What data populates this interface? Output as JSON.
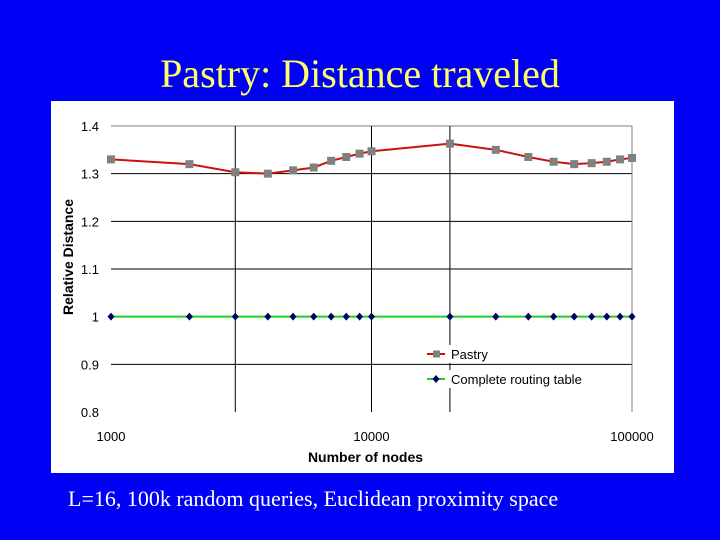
{
  "slide": {
    "title": "Pastry: Distance traveled",
    "caption": "L=16, 100k random queries, Euclidean proximity space",
    "background_color": "#0000f5",
    "title_color": "#ffff66"
  },
  "chart_data": {
    "type": "line",
    "title": "",
    "xlabel": "Number of nodes",
    "ylabel": "Relative Distance",
    "xscale": "log",
    "xlim": [
      1000,
      100000
    ],
    "ylim": [
      0.8,
      1.4
    ],
    "x_ticks": [
      "1000",
      "10000",
      "100000"
    ],
    "y_ticks": [
      "0.8",
      "0.9",
      "1",
      "1.1",
      "1.2",
      "1.3",
      "1.4"
    ],
    "grid": true,
    "legend_position": "lower right inside",
    "x": [
      1000,
      2000,
      3000,
      4000,
      5000,
      6000,
      7000,
      8000,
      9000,
      10000,
      20000,
      30000,
      40000,
      50000,
      60000,
      70000,
      80000,
      90000,
      100000
    ],
    "series": [
      {
        "name": "Pastry",
        "line_color": "#cc1111",
        "marker": "square",
        "marker_color": "#808080",
        "values": [
          1.33,
          1.32,
          1.303,
          1.3,
          1.307,
          1.313,
          1.327,
          1.335,
          1.342,
          1.347,
          1.363,
          1.35,
          1.335,
          1.325,
          1.32,
          1.322,
          1.325,
          1.33,
          1.333
        ]
      },
      {
        "name": "Complete routing table",
        "line_color": "#22cc22",
        "marker": "diamond",
        "marker_color": "#000066",
        "values": [
          1,
          1,
          1,
          1,
          1,
          1,
          1,
          1,
          1,
          1,
          1,
          1,
          1,
          1,
          1,
          1,
          1,
          1,
          1
        ]
      }
    ]
  }
}
